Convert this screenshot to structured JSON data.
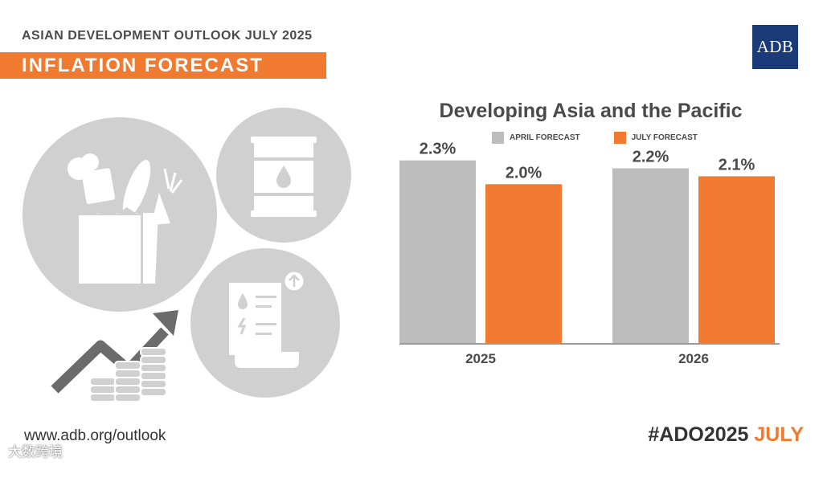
{
  "header": {
    "subtitle": "ASIAN DEVELOPMENT OUTLOOK JULY 2025",
    "title": "INFLATION FORECAST",
    "logo": "ADB"
  },
  "colors": {
    "accent": "#f07a30",
    "april": "#bdbdbd",
    "july": "#f07a30",
    "brand": "#1b3a78"
  },
  "icons": [
    "grocery-bag-icon",
    "oil-barrel-icon",
    "bill-receipt-icon",
    "rising-arrow-icon",
    "coin-stack-icon"
  ],
  "chart_data": {
    "type": "bar",
    "title": "Developing Asia and the Pacific",
    "categories": [
      "2025",
      "2026"
    ],
    "series": [
      {
        "name": "APRIL FORECAST",
        "values": [
          2.3,
          2.2
        ],
        "labels": [
          "2.3%",
          "2.2%"
        ]
      },
      {
        "name": "JULY FORECAST",
        "values": [
          2.0,
          2.1
        ],
        "labels": [
          "2.0%",
          "2.1%"
        ]
      }
    ],
    "ylim": [
      0,
      2.6
    ],
    "xlabel": "",
    "ylabel": "",
    "grid": false,
    "legend": "top-center"
  },
  "footer": {
    "url": "www.adb.org/outlook",
    "hashtag": "#ADO2025 ",
    "hashtag_highlight": "JULY",
    "watermark": "大数跨境"
  }
}
